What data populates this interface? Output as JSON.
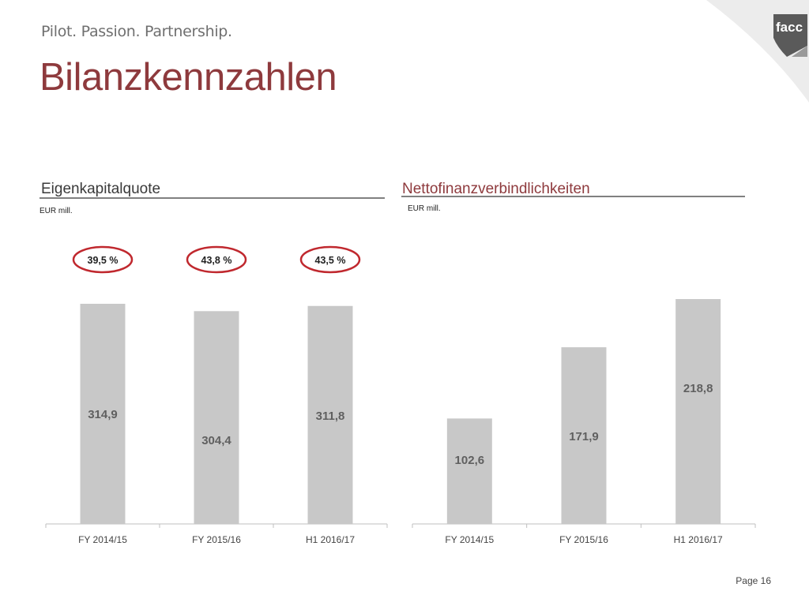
{
  "header": {
    "slogan": "Pilot. Passion. Partnership.",
    "title": "Bilanzkennzahlen",
    "logo_text": "facc"
  },
  "colors": {
    "title": "#8e3a3d",
    "accent_red": "#c0282e",
    "bar": "#c8c8c8",
    "bar_label": "#606060",
    "axis": "#bfbfbf"
  },
  "footer": {
    "page": "Page 16"
  },
  "chart_data": [
    {
      "type": "bar",
      "title": "Eigenkapitalquote",
      "unit": "EUR mill.",
      "categories": [
        "FY 2014/15",
        "FY 2015/16",
        "H1 2016/17"
      ],
      "values": [
        314.9,
        304.4,
        311.8
      ],
      "value_labels": [
        "314,9",
        "304,4",
        "311,8"
      ],
      "ratios": [
        "39,5 %",
        "43,8 %",
        "43,5 %"
      ],
      "ylim": [
        0,
        320
      ],
      "grid": false
    },
    {
      "type": "bar",
      "title": "Nettofinanzverbindlichkeiten",
      "unit": "EUR mill.",
      "categories": [
        "FY 2014/15",
        "FY 2015/16",
        "H1 2016/17"
      ],
      "values": [
        102.6,
        171.9,
        218.8
      ],
      "value_labels": [
        "102,6",
        "171,9",
        "218,8"
      ],
      "ylim": [
        0,
        240
      ],
      "grid": false
    }
  ]
}
